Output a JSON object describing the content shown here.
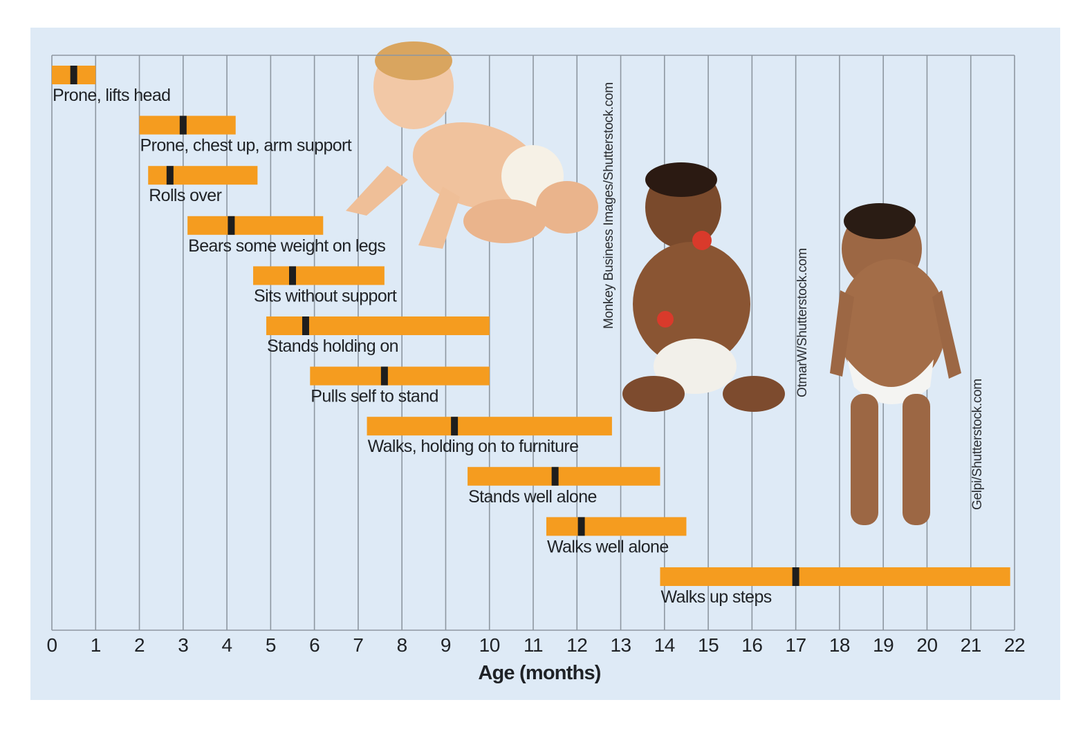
{
  "chart_data": {
    "type": "bar",
    "subtype": "range-timeline",
    "title": "",
    "xlabel": "Age (months)",
    "ylabel": "",
    "xlim": [
      0,
      22
    ],
    "xticks": [
      "0",
      "1",
      "2",
      "3",
      "4",
      "5",
      "6",
      "7",
      "8",
      "9",
      "10",
      "11",
      "12",
      "13",
      "14",
      "15",
      "16",
      "17",
      "18",
      "19",
      "20",
      "21",
      "22"
    ],
    "grid": "vertical",
    "colors": {
      "range": "#f59c1f",
      "median": "#1e1e1e",
      "grid": "#8d96a0",
      "background": "#deeaf6",
      "text": "#1f2226"
    },
    "series": [
      {
        "name": "Prone, lifts head",
        "start": 0.0,
        "end": 1.0,
        "median": 0.5
      },
      {
        "name": "Prone, chest up, arm support",
        "start": 2.0,
        "end": 4.2,
        "median": 3.0
      },
      {
        "name": "Rolls over",
        "start": 2.2,
        "end": 4.7,
        "median": 2.7
      },
      {
        "name": "Bears some weight on legs",
        "start": 3.1,
        "end": 6.2,
        "median": 4.1
      },
      {
        "name": "Sits without support",
        "start": 4.6,
        "end": 7.6,
        "median": 5.5
      },
      {
        "name": "Stands holding on",
        "start": 4.9,
        "end": 10.0,
        "median": 5.8
      },
      {
        "name": "Pulls self to stand",
        "start": 5.9,
        "end": 10.0,
        "median": 7.6
      },
      {
        "name": "Walks, holding on to furniture",
        "start": 7.2,
        "end": 12.8,
        "median": 9.2
      },
      {
        "name": "Stands well alone",
        "start": 9.5,
        "end": 13.9,
        "median": 11.5
      },
      {
        "name": "Walks well alone",
        "start": 11.3,
        "end": 14.5,
        "median": 12.1
      },
      {
        "name": "Walks up steps",
        "start": 13.9,
        "end": 21.9,
        "median": 17.0
      }
    ],
    "annotations": [
      "Monkey Business Images/Shutterstock.com",
      "OtmarW/Shutterstock.com",
      "Gelpi/Shutterstock.com"
    ]
  },
  "images": [
    {
      "name": "crawling-baby-photo",
      "description": "Baby crawling"
    },
    {
      "name": "sitting-baby-photo",
      "description": "Baby sitting, eating strawberry"
    },
    {
      "name": "standing-baby-photo",
      "description": "Toddler standing"
    }
  ]
}
